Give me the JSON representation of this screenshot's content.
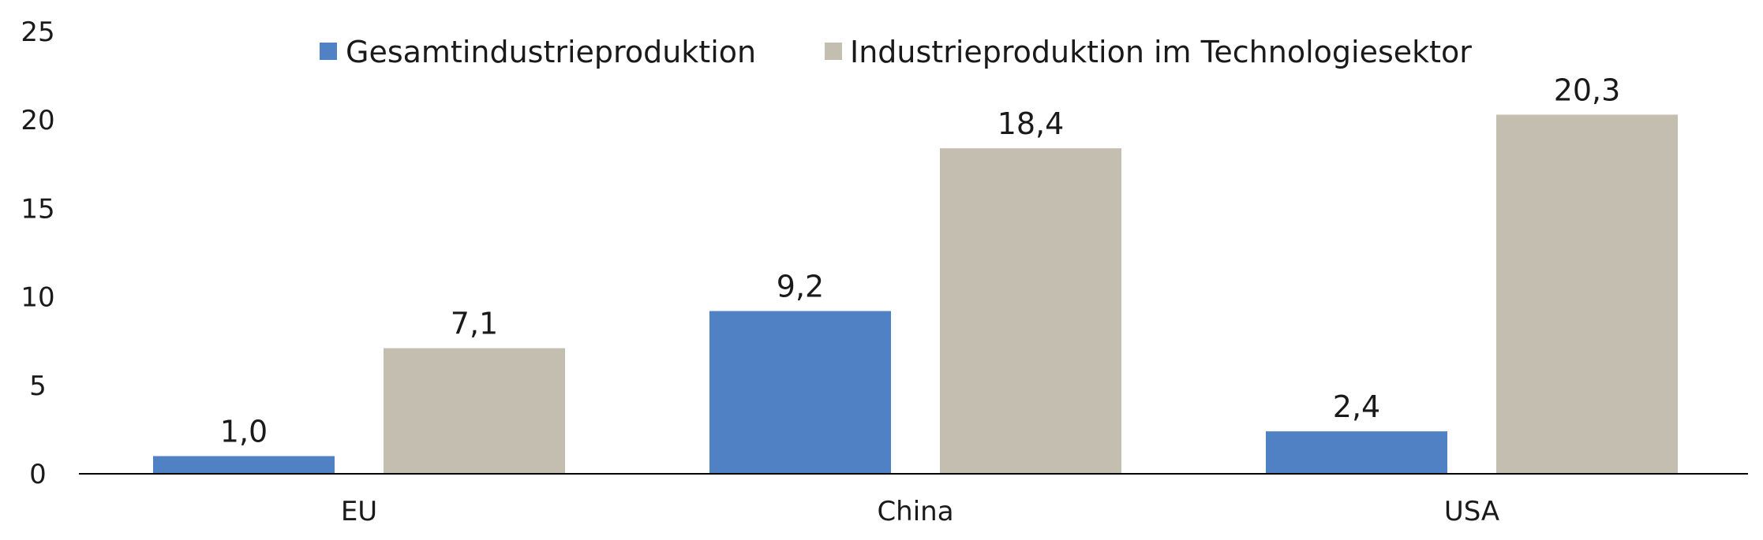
{
  "chart_data": {
    "type": "bar",
    "categories": [
      "EU",
      "China",
      "USA"
    ],
    "series": [
      {
        "name": "Gesamtindustrieproduktion",
        "color": "#4f81c4",
        "values": [
          1.0,
          9.2,
          2.4
        ],
        "labels": [
          "1,0",
          "9,2",
          "2,4"
        ]
      },
      {
        "name": "Industrieproduktion im Technologiesektor",
        "color": "#c4beb0",
        "values": [
          7.1,
          18.4,
          20.3
        ],
        "labels": [
          "7,1",
          "18,4",
          "20,3"
        ]
      }
    ],
    "yticks": [
      0,
      5,
      10,
      15,
      20,
      25
    ],
    "ylim": [
      0,
      25
    ],
    "legend": "top-center",
    "grid": false
  }
}
